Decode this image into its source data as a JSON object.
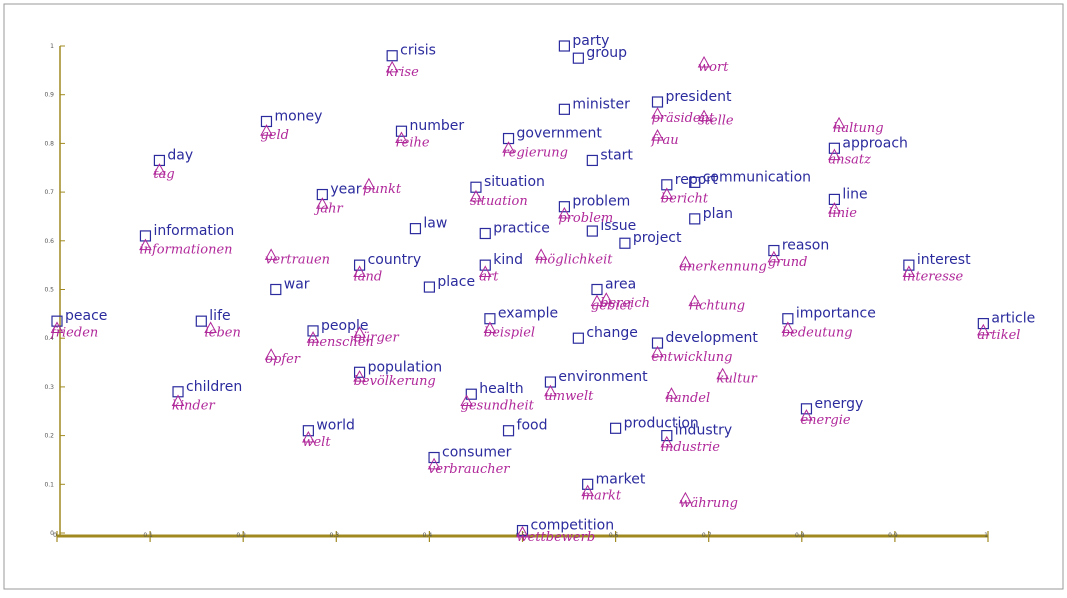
{
  "chart_data": {
    "type": "scatter",
    "title": "",
    "xlabel": "",
    "ylabel": "",
    "xlim": [
      0,
      1
    ],
    "ylim": [
      0,
      1
    ],
    "x_ticks": [
      "0",
      "0.1",
      "0.2",
      "0.3",
      "0.4",
      "0.5",
      "0.6",
      "0.7",
      "0.8",
      "0.9",
      "1"
    ],
    "y_ticks": [
      "0",
      "0.1",
      "0.2",
      "0.3",
      "0.4",
      "0.5",
      "0.6",
      "0.7",
      "0.8",
      "0.9",
      "1"
    ],
    "colors": {
      "en": "#2b2b9e",
      "de": "#b0289a",
      "axis": "#a08a20"
    },
    "series": [
      {
        "name": "",
        "marker": "square",
        "points": [
          {
            "label": "crisis",
            "x": 0.36,
            "y": 0.98
          },
          {
            "label": "party",
            "x": 0.545,
            "y": 1.0
          },
          {
            "label": "group",
            "x": 0.56,
            "y": 0.975
          },
          {
            "label": "minister",
            "x": 0.545,
            "y": 0.87
          },
          {
            "label": "president",
            "x": 0.645,
            "y": 0.885
          },
          {
            "label": "money",
            "x": 0.225,
            "y": 0.845
          },
          {
            "label": "number",
            "x": 0.37,
            "y": 0.825
          },
          {
            "label": "government",
            "x": 0.485,
            "y": 0.81
          },
          {
            "label": "start",
            "x": 0.575,
            "y": 0.765
          },
          {
            "label": "approach",
            "x": 0.835,
            "y": 0.79
          },
          {
            "label": "day",
            "x": 0.11,
            "y": 0.765
          },
          {
            "label": "report",
            "x": 0.655,
            "y": 0.715
          },
          {
            "label": "communication",
            "x": 0.685,
            "y": 0.72
          },
          {
            "label": "year",
            "x": 0.285,
            "y": 0.695
          },
          {
            "label": "situation",
            "x": 0.45,
            "y": 0.71
          },
          {
            "label": "line",
            "x": 0.835,
            "y": 0.685
          },
          {
            "label": "problem",
            "x": 0.545,
            "y": 0.67
          },
          {
            "label": "plan",
            "x": 0.685,
            "y": 0.645
          },
          {
            "label": "law",
            "x": 0.385,
            "y": 0.625
          },
          {
            "label": "practice",
            "x": 0.46,
            "y": 0.615
          },
          {
            "label": "issue",
            "x": 0.575,
            "y": 0.62
          },
          {
            "label": "project",
            "x": 0.61,
            "y": 0.595
          },
          {
            "label": "information",
            "x": 0.095,
            "y": 0.61
          },
          {
            "label": "reason",
            "x": 0.77,
            "y": 0.58
          },
          {
            "label": "interest",
            "x": 0.915,
            "y": 0.55
          },
          {
            "label": "country",
            "x": 0.325,
            "y": 0.55
          },
          {
            "label": "kind",
            "x": 0.46,
            "y": 0.55
          },
          {
            "label": "war",
            "x": 0.235,
            "y": 0.5
          },
          {
            "label": "place",
            "x": 0.4,
            "y": 0.505
          },
          {
            "label": "area",
            "x": 0.58,
            "y": 0.5
          },
          {
            "label": "peace",
            "x": 0.0,
            "y": 0.435
          },
          {
            "label": "life",
            "x": 0.155,
            "y": 0.435
          },
          {
            "label": "example",
            "x": 0.465,
            "y": 0.44
          },
          {
            "label": "importance",
            "x": 0.785,
            "y": 0.44
          },
          {
            "label": "article",
            "x": 0.995,
            "y": 0.43
          },
          {
            "label": "people",
            "x": 0.275,
            "y": 0.415
          },
          {
            "label": "change",
            "x": 0.56,
            "y": 0.4
          },
          {
            "label": "development",
            "x": 0.645,
            "y": 0.39
          },
          {
            "label": "population",
            "x": 0.325,
            "y": 0.33
          },
          {
            "label": "environment",
            "x": 0.53,
            "y": 0.31
          },
          {
            "label": "children",
            "x": 0.13,
            "y": 0.29
          },
          {
            "label": "health",
            "x": 0.445,
            "y": 0.285
          },
          {
            "label": "energy",
            "x": 0.805,
            "y": 0.255
          },
          {
            "label": "world",
            "x": 0.27,
            "y": 0.21
          },
          {
            "label": "food",
            "x": 0.485,
            "y": 0.21
          },
          {
            "label": "production",
            "x": 0.6,
            "y": 0.215
          },
          {
            "label": "industry",
            "x": 0.655,
            "y": 0.2
          },
          {
            "label": "consumer",
            "x": 0.405,
            "y": 0.155
          },
          {
            "label": "market",
            "x": 0.57,
            "y": 0.1
          },
          {
            "label": "competition",
            "x": 0.5,
            "y": 0.005
          }
        ]
      },
      {
        "name": "",
        "marker": "triangle",
        "points": [
          {
            "label": "krise",
            "x": 0.36,
            "y": 0.955
          },
          {
            "label": "wort",
            "x": 0.695,
            "y": 0.965
          },
          {
            "label": "präsident",
            "x": 0.645,
            "y": 0.86
          },
          {
            "label": "stelle",
            "x": 0.695,
            "y": 0.855
          },
          {
            "label": "frau",
            "x": 0.645,
            "y": 0.815
          },
          {
            "label": "geld",
            "x": 0.225,
            "y": 0.825
          },
          {
            "label": "reihe",
            "x": 0.37,
            "y": 0.81
          },
          {
            "label": "regierung",
            "x": 0.485,
            "y": 0.79
          },
          {
            "label": "haltung",
            "x": 0.84,
            "y": 0.84
          },
          {
            "label": "ansatz",
            "x": 0.835,
            "y": 0.775
          },
          {
            "label": "tag",
            "x": 0.11,
            "y": 0.745
          },
          {
            "label": "bericht",
            "x": 0.655,
            "y": 0.695
          },
          {
            "label": "jahr",
            "x": 0.285,
            "y": 0.675
          },
          {
            "label": "punkt",
            "x": 0.335,
            "y": 0.715
          },
          {
            "label": "situation",
            "x": 0.45,
            "y": 0.69
          },
          {
            "label": "linie",
            "x": 0.835,
            "y": 0.665
          },
          {
            "label": "problem",
            "x": 0.545,
            "y": 0.655
          },
          {
            "label": "informationen",
            "x": 0.095,
            "y": 0.59
          },
          {
            "label": "vertrauen",
            "x": 0.23,
            "y": 0.57
          },
          {
            "label": "land",
            "x": 0.325,
            "y": 0.535
          },
          {
            "label": "art",
            "x": 0.46,
            "y": 0.535
          },
          {
            "label": "möglichkeit",
            "x": 0.52,
            "y": 0.57
          },
          {
            "label": "anerkennung",
            "x": 0.675,
            "y": 0.555
          },
          {
            "label": "grund",
            "x": 0.77,
            "y": 0.565
          },
          {
            "label": "interesse",
            "x": 0.915,
            "y": 0.535
          },
          {
            "label": "bereich",
            "x": 0.59,
            "y": 0.48
          },
          {
            "label": "gebiet",
            "x": 0.58,
            "y": 0.475
          },
          {
            "label": "richtung",
            "x": 0.685,
            "y": 0.475
          },
          {
            "label": "frieden",
            "x": 0.0,
            "y": 0.42
          },
          {
            "label": "leben",
            "x": 0.165,
            "y": 0.42
          },
          {
            "label": "beispiel",
            "x": 0.465,
            "y": 0.42
          },
          {
            "label": "bedeutung",
            "x": 0.785,
            "y": 0.42
          },
          {
            "label": "artikel",
            "x": 0.995,
            "y": 0.415
          },
          {
            "label": "menschen",
            "x": 0.275,
            "y": 0.4
          },
          {
            "label": "bürger",
            "x": 0.325,
            "y": 0.41
          },
          {
            "label": "entwicklung",
            "x": 0.645,
            "y": 0.37
          },
          {
            "label": "opfer",
            "x": 0.23,
            "y": 0.365
          },
          {
            "label": "bevölkerung",
            "x": 0.325,
            "y": 0.32
          },
          {
            "label": "kultur",
            "x": 0.715,
            "y": 0.325
          },
          {
            "label": "umwelt",
            "x": 0.53,
            "y": 0.29
          },
          {
            "label": "handel",
            "x": 0.66,
            "y": 0.285
          },
          {
            "label": "kinder",
            "x": 0.13,
            "y": 0.27
          },
          {
            "label": "gesundheit",
            "x": 0.44,
            "y": 0.27
          },
          {
            "label": "energie",
            "x": 0.805,
            "y": 0.24
          },
          {
            "label": "welt",
            "x": 0.27,
            "y": 0.195
          },
          {
            "label": "industrie",
            "x": 0.655,
            "y": 0.185
          },
          {
            "label": "verbraucher",
            "x": 0.405,
            "y": 0.14
          },
          {
            "label": "markt",
            "x": 0.57,
            "y": 0.085
          },
          {
            "label": "währung",
            "x": 0.675,
            "y": 0.07
          },
          {
            "label": "wettbewerb",
            "x": 0.5,
            "y": 0.0
          }
        ]
      }
    ]
  }
}
